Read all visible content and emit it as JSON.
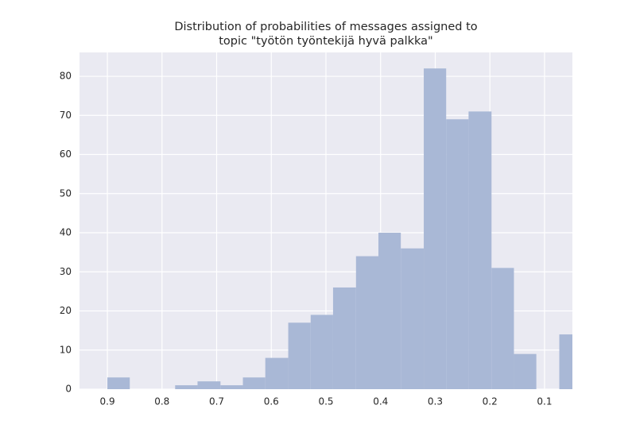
{
  "chart_data": {
    "type": "histogram",
    "title": [
      "Distribution of probabilities of messages assigned to",
      "topic \"työtön työntekijä hyvä palkka\""
    ],
    "bins": [
      0.032,
      0.073,
      0.115,
      0.156,
      0.197,
      0.239,
      0.28,
      0.321,
      0.363,
      0.404,
      0.445,
      0.487,
      0.528,
      0.569,
      0.611,
      0.652,
      0.693,
      0.735,
      0.776,
      0.817,
      0.859,
      0.9
    ],
    "values": [
      14,
      0,
      9,
      31,
      71,
      69,
      82,
      36,
      40,
      34,
      26,
      19,
      17,
      8,
      3,
      1,
      2,
      1,
      0,
      0,
      3
    ],
    "color": "#a9b8d6",
    "xlim": [
      0.951,
      0.049
    ],
    "xticks": [
      0.9,
      0.8,
      0.7,
      0.6,
      0.5,
      0.4,
      0.3,
      0.2,
      0.1
    ],
    "ylim": [
      0,
      86.1
    ],
    "yticks": [
      0,
      10,
      20,
      30,
      40,
      50,
      60,
      70,
      80
    ],
    "grid": true
  }
}
